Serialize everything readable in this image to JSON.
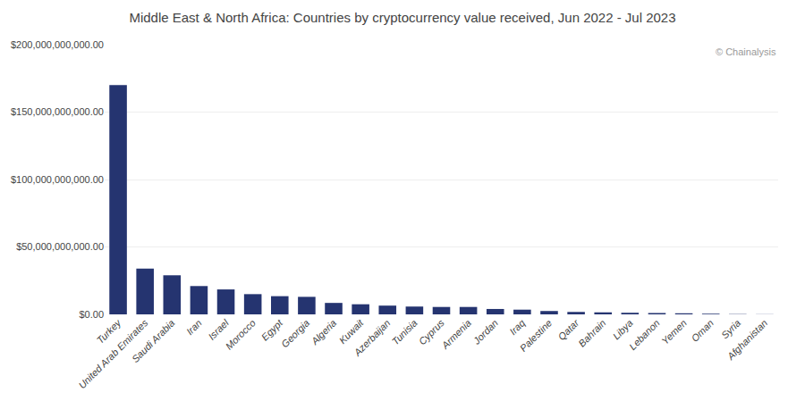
{
  "chart_data": {
    "type": "bar",
    "title": "Middle East & North Africa: Countries by cryptocurrency value received, Jun 2022 - Jul 2023",
    "categories": [
      "Turkey",
      "United Arab Emirates",
      "Saudi Arabia",
      "Iran",
      "Israel",
      "Morocco",
      "Egypt",
      "Georgia",
      "Algeria",
      "Kuwait",
      "Azerbaijan",
      "Tunisia",
      "Cyprus",
      "Armenia",
      "Jordan",
      "Iraq",
      "Palestine",
      "Qatar",
      "Bahrain",
      "Libya",
      "Lebanon",
      "Yemen",
      "Oman",
      "Syria",
      "Afghanistan"
    ],
    "values": [
      170000000000,
      34000000000,
      29000000000,
      21000000000,
      18500000000,
      15000000000,
      13500000000,
      13000000000,
      8500000000,
      7500000000,
      6500000000,
      5800000000,
      5500000000,
      5500000000,
      4000000000,
      3500000000,
      2500000000,
      1800000000,
      1500000000,
      1200000000,
      1000000000,
      800000000,
      500000000,
      200000000,
      100000000
    ],
    "color": "#253470",
    "ylim": [
      0,
      200000000000
    ],
    "yticks": [
      {
        "value": 0,
        "label": "$0.00"
      },
      {
        "value": 50000000000,
        "label": "$50,000,000,000.00"
      },
      {
        "value": 100000000000,
        "label": "$100,000,000,000.00"
      },
      {
        "value": 150000000000,
        "label": "$150,000,000,000.00"
      },
      {
        "value": 200000000000,
        "label": "$200,000,000,000.00"
      }
    ],
    "grid": true,
    "annotations": [
      "© Chainalysis"
    ]
  }
}
